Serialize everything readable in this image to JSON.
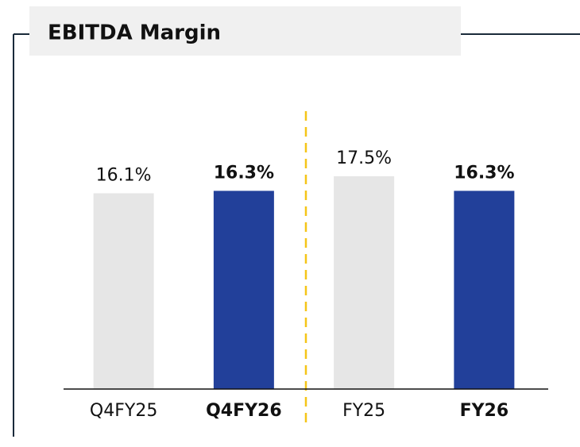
{
  "chart_data": {
    "type": "bar",
    "title": "EBITDA Margin",
    "categories": [
      "Q4FY25",
      "Q4FY26",
      "FY25",
      "FY26"
    ],
    "values": [
      16.1,
      16.3,
      17.5,
      16.3
    ],
    "value_labels": [
      "16.1%",
      "16.3%",
      "17.5%",
      "16.3%"
    ],
    "colors": [
      "#e6e6e6",
      "#22409a",
      "#e6e6e6",
      "#22409a"
    ],
    "bold": [
      false,
      true,
      false,
      true
    ]
  }
}
